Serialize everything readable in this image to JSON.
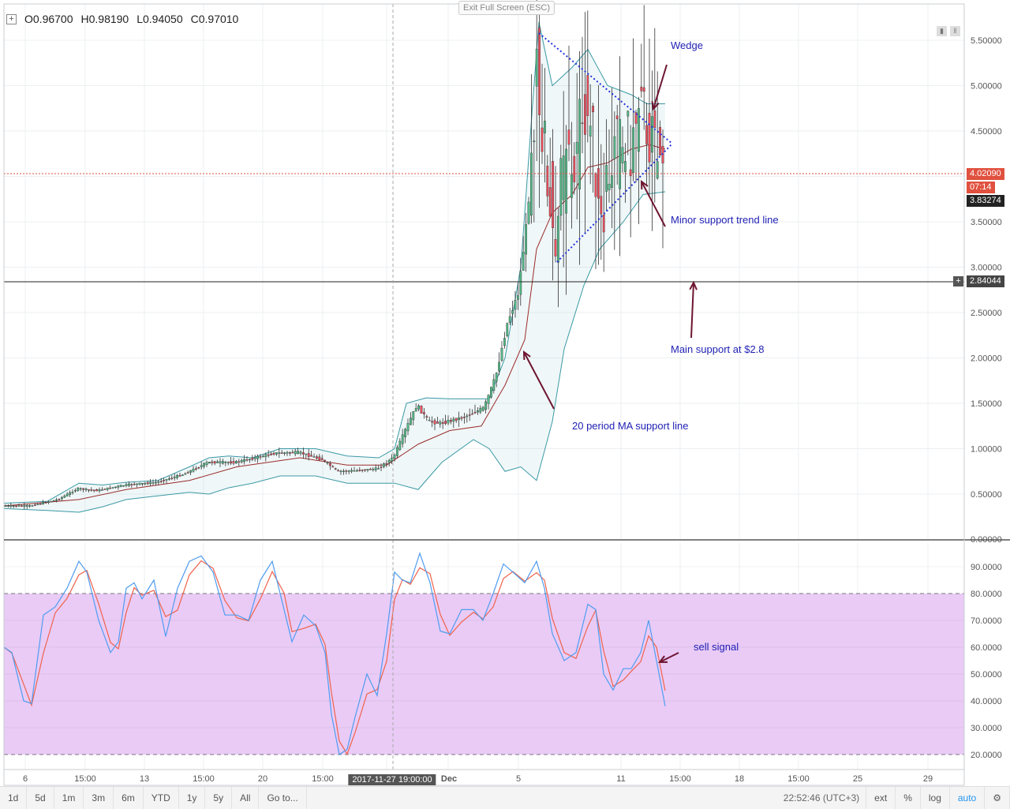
{
  "ohlc": {
    "open": "O0.96700",
    "high": "H0.98190",
    "low": "L0.94050",
    "close": "C0.97010"
  },
  "exit_full_screen": "Exit Full Screen (ESC)",
  "price_axis": {
    "ticks": [
      "5.50000",
      "5.00000",
      "4.50000",
      "3.50000",
      "3.00000",
      "2.50000",
      "2.00000",
      "1.50000",
      "1.00000",
      "0.50000",
      "0.00000"
    ]
  },
  "osc_axis": {
    "ticks": [
      "90.0000",
      "80.0000",
      "70.0000",
      "60.0000",
      "50.0000",
      "40.0000",
      "30.0000",
      "20.0000"
    ]
  },
  "price_labels": {
    "last": "4.02090",
    "countdown": "07:14",
    "bb_lower": "3.83274",
    "crosshair": "2.84044"
  },
  "time_axis": {
    "labels": [
      "6",
      "15:00",
      "13",
      "15:00",
      "20",
      "15:00",
      "Dec",
      "5",
      "11",
      "15:00",
      "18",
      "15:00",
      "25",
      "29"
    ],
    "crosshair": "2017-11-27 19:00:00"
  },
  "annotations": {
    "wedge": "Wedge",
    "minor_support": "Minor support trend line",
    "main_support": "Main support at $2.8",
    "ma_support": "20 period MA support line",
    "sell_signal": "sell signal"
  },
  "bottom_bar": {
    "timeframes": [
      "1d",
      "5d",
      "1m",
      "3m",
      "6m",
      "YTD",
      "1y",
      "5y",
      "All",
      "Go to..."
    ],
    "clock": "22:52:46 (UTC+3)",
    "ext": "ext",
    "percent": "%",
    "log": "log",
    "auto": "auto"
  },
  "colors": {
    "up": "#53b987",
    "down": "#eb4d5c",
    "bb": "#3a9aa5",
    "ma": "#9b2c2c",
    "annot_text": "#1f1fb4",
    "arrow": "#6e1530",
    "k_line": "#4f9cf0",
    "d_line": "#f0624a",
    "band_fill": "#e8c8f5"
  }
}
